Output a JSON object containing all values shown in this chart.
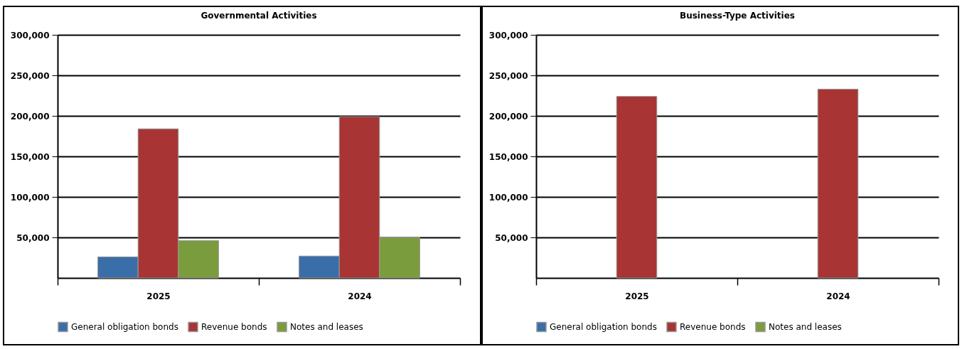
{
  "chart_data": [
    {
      "type": "bar",
      "title": "Governmental Activities",
      "categories": [
        "2025",
        "2024"
      ],
      "series": [
        {
          "name": "General obligation bonds",
          "color": "#3a6ea8",
          "values": [
            26000,
            27000
          ]
        },
        {
          "name": "Revenue bonds",
          "color": "#a83434",
          "values": [
            184000,
            199000
          ]
        },
        {
          "name": "Notes and leases",
          "color": "#7a9c3c",
          "values": [
            46000,
            50000
          ]
        }
      ],
      "ylim": [
        0,
        300000
      ],
      "yticks": [
        {
          "value": 50000,
          "label": "50,000"
        },
        {
          "value": 100000,
          "label": "100,000"
        },
        {
          "value": 150000,
          "label": "150,000"
        },
        {
          "value": 200000,
          "label": "200,000"
        },
        {
          "value": 250000,
          "label": "250,000"
        },
        {
          "value": 300000,
          "label": "300,000"
        }
      ],
      "grid": "y",
      "legend": "bottom"
    },
    {
      "type": "bar",
      "title": "Business-Type Activities",
      "categories": [
        "2025",
        "2024"
      ],
      "series": [
        {
          "name": "General obligation bonds",
          "color": "#3a6ea8",
          "values": [
            null,
            null
          ]
        },
        {
          "name": "Revenue bonds",
          "color": "#a83434",
          "values": [
            224000,
            233000
          ]
        },
        {
          "name": "Notes and leases",
          "color": "#7a9c3c",
          "values": [
            null,
            null
          ]
        }
      ],
      "ylim": [
        0,
        300000
      ],
      "yticks": [
        {
          "value": 50000,
          "label": "50,000"
        },
        {
          "value": 100000,
          "label": "100,000"
        },
        {
          "value": 150000,
          "label": "150,000"
        },
        {
          "value": 200000,
          "label": "200,000"
        },
        {
          "value": 250000,
          "label": "250,000"
        },
        {
          "value": 300000,
          "label": "300,000"
        }
      ],
      "grid": "y",
      "legend": "bottom"
    }
  ]
}
